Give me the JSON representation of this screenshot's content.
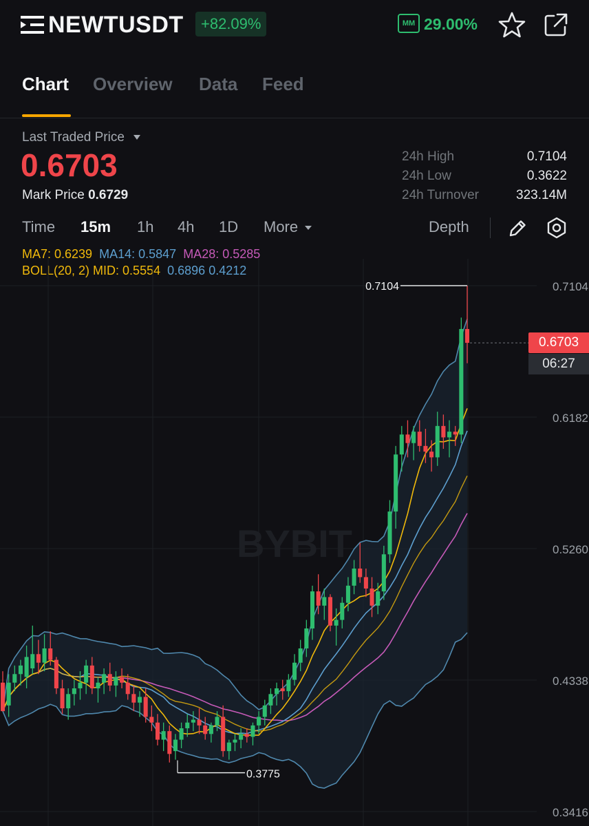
{
  "header": {
    "symbol": "NEWTUSDT",
    "change": "+82.09%",
    "mm_icon_label": "MM",
    "mm_value": "29.00%",
    "icons": [
      "menu-icon",
      "mm-icon",
      "star-icon",
      "share-icon"
    ]
  },
  "tabs": [
    {
      "label": "Chart",
      "active": true
    },
    {
      "label": "Overview",
      "active": false
    },
    {
      "label": "Data",
      "active": false
    },
    {
      "label": "Feed",
      "active": false
    }
  ],
  "price": {
    "last_traded_label": "Last Traded Price",
    "last_price": "0.6703",
    "mark_label": "Mark Price",
    "mark_value": "0.6729"
  },
  "stats": [
    {
      "label": "24h High",
      "value": "0.7104"
    },
    {
      "label": "24h Low",
      "value": "0.3622"
    },
    {
      "label": "24h Turnover",
      "value": "323.14M"
    }
  ],
  "intervals": {
    "items": [
      {
        "label": "Time",
        "active": false
      },
      {
        "label": "15m",
        "active": true
      },
      {
        "label": "1h",
        "active": false
      },
      {
        "label": "4h",
        "active": false
      },
      {
        "label": "1D",
        "active": false
      },
      {
        "label": "More",
        "active": false
      }
    ],
    "depth_label": "Depth",
    "icons": [
      "pen-icon",
      "settings-icon"
    ]
  },
  "indicators": {
    "ma7": "MA7: 0.6239",
    "ma14": "MA14: 0.5847",
    "ma28": "MA28: 0.5285",
    "boll_label": "BOLL(20, 2) MID: 0.5554",
    "boll_upper": "0.6896",
    "boll_lower": "0.4212"
  },
  "colors": {
    "up": "#2ebd6f",
    "down": "#ef454a",
    "ma7": "#f0b90b",
    "ma14": "#5d9fcf",
    "ma28": "#c65ab8",
    "boll": "#4f88ad",
    "accent": "#f7a600"
  },
  "chart_data": {
    "type": "candlestick",
    "watermark": "BYBIT",
    "y_ticks": [
      "0.7104",
      "0.6182",
      "0.5260",
      "0.4338",
      "0.3416"
    ],
    "ylim": [
      0.3416,
      0.7104
    ],
    "high_marker": "0.7104",
    "low_marker": "0.3775",
    "current_price_tag": "0.6703",
    "countdown": "06:27",
    "candles": [
      [
        0.432,
        0.44,
        0.412,
        0.412
      ],
      [
        0.416,
        0.438,
        0.408,
        0.432
      ],
      [
        0.432,
        0.444,
        0.426,
        0.438
      ],
      [
        0.438,
        0.448,
        0.43,
        0.444
      ],
      [
        0.436,
        0.458,
        0.428,
        0.45
      ],
      [
        0.442,
        0.472,
        0.438,
        0.452
      ],
      [
        0.452,
        0.462,
        0.438,
        0.446
      ],
      [
        0.446,
        0.466,
        0.44,
        0.456
      ],
      [
        0.456,
        0.468,
        0.444,
        0.448
      ],
      [
        0.448,
        0.45,
        0.424,
        0.428
      ],
      [
        0.428,
        0.434,
        0.41,
        0.414
      ],
      [
        0.414,
        0.428,
        0.406,
        0.424
      ],
      [
        0.424,
        0.434,
        0.416,
        0.428
      ],
      [
        0.428,
        0.44,
        0.42,
        0.432
      ],
      [
        0.432,
        0.448,
        0.424,
        0.444
      ],
      [
        0.444,
        0.45,
        0.424,
        0.428
      ],
      [
        0.428,
        0.436,
        0.418,
        0.432
      ],
      [
        0.432,
        0.442,
        0.424,
        0.438
      ],
      [
        0.438,
        0.446,
        0.426,
        0.43
      ],
      [
        0.43,
        0.44,
        0.422,
        0.436
      ],
      [
        0.436,
        0.442,
        0.428,
        0.432
      ],
      [
        0.432,
        0.438,
        0.42,
        0.424
      ],
      [
        0.424,
        0.43,
        0.412,
        0.418
      ],
      [
        0.418,
        0.426,
        0.408,
        0.422
      ],
      [
        0.422,
        0.428,
        0.404,
        0.408
      ],
      [
        0.408,
        0.416,
        0.398,
        0.404
      ],
      [
        0.404,
        0.41,
        0.388,
        0.392
      ],
      [
        0.392,
        0.404,
        0.384,
        0.398
      ],
      [
        0.398,
        0.402,
        0.376,
        0.382
      ],
      [
        0.384,
        0.396,
        0.378,
        0.392
      ],
      [
        0.392,
        0.404,
        0.386,
        0.4
      ],
      [
        0.4,
        0.41,
        0.394,
        0.404
      ],
      [
        0.404,
        0.412,
        0.398,
        0.406
      ],
      [
        0.406,
        0.414,
        0.396,
        0.402
      ],
      [
        0.402,
        0.408,
        0.392,
        0.396
      ],
      [
        0.396,
        0.404,
        0.39,
        0.402
      ],
      [
        0.402,
        0.412,
        0.398,
        0.408
      ],
      [
        0.408,
        0.416,
        0.38,
        0.384
      ],
      [
        0.384,
        0.392,
        0.378,
        0.39
      ],
      [
        0.39,
        0.396,
        0.384,
        0.392
      ],
      [
        0.392,
        0.4,
        0.386,
        0.396
      ],
      [
        0.396,
        0.4,
        0.39,
        0.394
      ],
      [
        0.394,
        0.404,
        0.388,
        0.402
      ],
      [
        0.402,
        0.412,
        0.396,
        0.408
      ],
      [
        0.408,
        0.42,
        0.402,
        0.416
      ],
      [
        0.416,
        0.428,
        0.41,
        0.424
      ],
      [
        0.424,
        0.432,
        0.416,
        0.428
      ],
      [
        0.428,
        0.434,
        0.42,
        0.426
      ],
      [
        0.426,
        0.438,
        0.422,
        0.434
      ],
      [
        0.434,
        0.452,
        0.43,
        0.446
      ],
      [
        0.446,
        0.462,
        0.44,
        0.456
      ],
      [
        0.456,
        0.476,
        0.45,
        0.47
      ],
      [
        0.47,
        0.5,
        0.462,
        0.496
      ],
      [
        0.496,
        0.508,
        0.48,
        0.486
      ],
      [
        0.486,
        0.498,
        0.476,
        0.492
      ],
      [
        0.492,
        0.494,
        0.468,
        0.472
      ],
      [
        0.472,
        0.484,
        0.458,
        0.476
      ],
      [
        0.476,
        0.492,
        0.47,
        0.488
      ],
      [
        0.488,
        0.506,
        0.482,
        0.5
      ],
      [
        0.5,
        0.518,
        0.494,
        0.512
      ],
      [
        0.512,
        0.53,
        0.502,
        0.506
      ],
      [
        0.506,
        0.512,
        0.492,
        0.498
      ],
      [
        0.498,
        0.506,
        0.478,
        0.486
      ],
      [
        0.486,
        0.502,
        0.48,
        0.496
      ],
      [
        0.496,
        0.528,
        0.49,
        0.522
      ],
      [
        0.522,
        0.56,
        0.516,
        0.552
      ],
      [
        0.552,
        0.598,
        0.54,
        0.592
      ],
      [
        0.592,
        0.612,
        0.58,
        0.606
      ],
      [
        0.606,
        0.616,
        0.59,
        0.6
      ],
      [
        0.6,
        0.612,
        0.588,
        0.608
      ],
      [
        0.608,
        0.616,
        0.594,
        0.598
      ],
      [
        0.598,
        0.61,
        0.586,
        0.594
      ],
      [
        0.594,
        0.602,
        0.58,
        0.59
      ],
      [
        0.59,
        0.622,
        0.584,
        0.612
      ],
      [
        0.612,
        0.62,
        0.596,
        0.604
      ],
      [
        0.604,
        0.616,
        0.59,
        0.608
      ],
      [
        0.608,
        0.612,
        0.598,
        0.606
      ],
      [
        0.606,
        0.688,
        0.6,
        0.68
      ],
      [
        0.68,
        0.7104,
        0.656,
        0.6703
      ]
    ]
  }
}
